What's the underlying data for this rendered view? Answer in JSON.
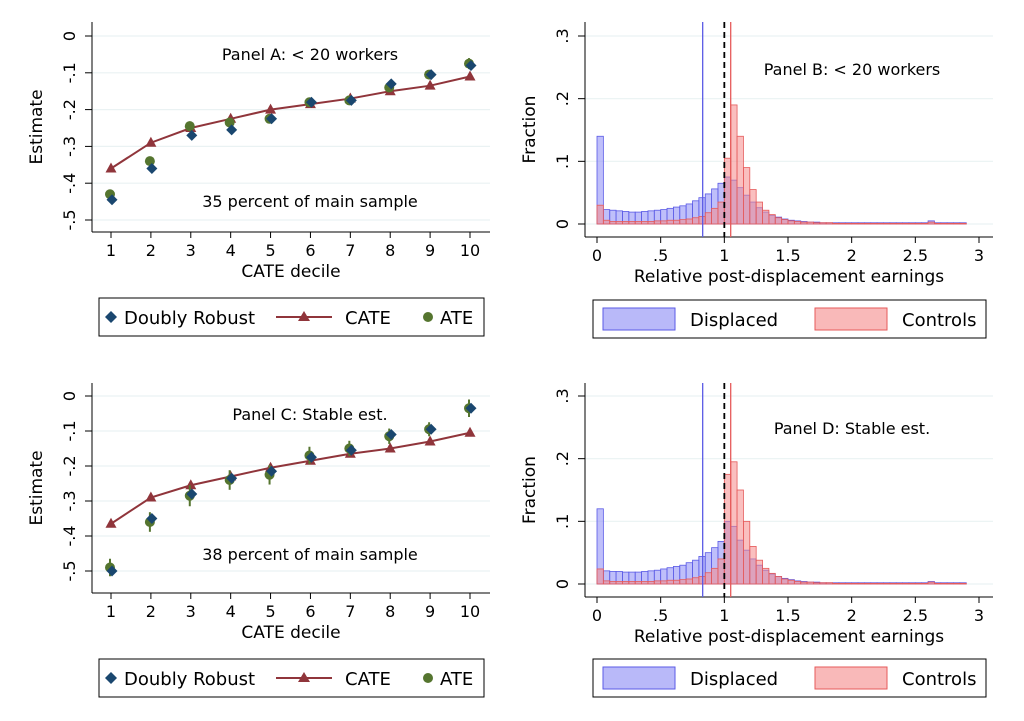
{
  "colors": {
    "doubly_robust": "#1a476f",
    "cate": "#90353b",
    "ate": "#55752f",
    "grid": "#eaf2f3",
    "displaced_fill": "#8b8bf5",
    "displaced_edge": "#5a5ae6",
    "controls_fill": "#f58b8b",
    "controls_edge": "#e65a5a",
    "overlap_fill": "#a03a8c"
  },
  "legend_left": {
    "doubly_robust": "Doubly Robust",
    "cate": "CATE",
    "ate": "ATE"
  },
  "legend_right": {
    "displaced": "Displaced",
    "controls": "Controls"
  },
  "panel_a": {
    "title": "Panel A: < 20 workers",
    "note": "35 percent of main sample"
  },
  "panel_b": {
    "title": "Panel B: < 20 workers"
  },
  "panel_c": {
    "title": "Panel C: Stable est.",
    "note": "38 percent of main sample"
  },
  "panel_d": {
    "title": "Panel D: Stable est."
  },
  "chart_data": [
    {
      "type": "scatter",
      "panel": "A",
      "title": "Panel A: < 20 workers",
      "annotation": "35 percent of main sample",
      "xlabel": "CATE decile",
      "ylabel": "Estimate",
      "x": [
        1,
        2,
        3,
        4,
        5,
        6,
        7,
        8,
        9,
        10
      ],
      "xticks": [
        "1",
        "2",
        "3",
        "4",
        "5",
        "6",
        "7",
        "8",
        "9",
        "10"
      ],
      "yticks": [
        "0",
        "-.1",
        "-.2",
        "-.3",
        "-.4",
        "-.5"
      ],
      "ylim": [
        -0.5,
        0
      ],
      "grid": true,
      "legend_position": "bottom",
      "series": [
        {
          "name": "Doubly Robust",
          "values": [
            -0.445,
            -0.36,
            -0.27,
            -0.255,
            -0.225,
            -0.18,
            -0.175,
            -0.13,
            -0.105,
            -0.08
          ]
        },
        {
          "name": "CATE",
          "values": [
            -0.36,
            -0.29,
            -0.25,
            -0.225,
            -0.2,
            -0.185,
            -0.17,
            -0.15,
            -0.135,
            -0.11
          ]
        },
        {
          "name": "ATE",
          "values": [
            -0.43,
            -0.34,
            -0.245,
            -0.235,
            -0.225,
            -0.18,
            -0.175,
            -0.14,
            -0.105,
            -0.075
          ],
          "ci_halfwidth": [
            0.01,
            0.012,
            0.013,
            0.012,
            0.012,
            0.01,
            0.01,
            0.01,
            0.012,
            0.015
          ]
        }
      ]
    },
    {
      "type": "bar",
      "panel": "B",
      "title": "Panel B: < 20 workers",
      "xlabel": "Relative post-displacement earnings",
      "ylabel": "Fraction",
      "xticks": [
        "0",
        ".5",
        "1",
        "1.5",
        "2",
        "2.5",
        "3"
      ],
      "yticks": [
        "0",
        ".1",
        ".2",
        ".3"
      ],
      "xlim": [
        0,
        3
      ],
      "ylim": [
        0,
        0.3
      ],
      "bin_width": 0.05,
      "bin_start": 0,
      "vertical_lines": [
        {
          "x": 0.83,
          "style": "solid",
          "color": "displaced"
        },
        {
          "x": 1.0,
          "style": "dashed",
          "color": "black"
        },
        {
          "x": 1.05,
          "style": "solid",
          "color": "controls"
        }
      ],
      "series": [
        {
          "name": "Displaced",
          "values": [
            0.14,
            0.023,
            0.022,
            0.021,
            0.02,
            0.019,
            0.019,
            0.02,
            0.021,
            0.022,
            0.023,
            0.025,
            0.027,
            0.029,
            0.032,
            0.037,
            0.042,
            0.048,
            0.056,
            0.065,
            0.075,
            0.07,
            0.058,
            0.046,
            0.035,
            0.026,
            0.019,
            0.014,
            0.011,
            0.008,
            0.006,
            0.005,
            0.004,
            0.003,
            0.003,
            0.002,
            0.002,
            0.002,
            0.002,
            0.002,
            0.002,
            0.002,
            0.002,
            0.002,
            0.002,
            0.002,
            0.002,
            0.002,
            0.002,
            0.002,
            0.002,
            0.002,
            0.005,
            0.002,
            0.002,
            0.002,
            0.002,
            0.002
          ]
        },
        {
          "name": "Controls",
          "values": [
            0.03,
            0.006,
            0.004,
            0.004,
            0.004,
            0.004,
            0.004,
            0.004,
            0.004,
            0.005,
            0.005,
            0.006,
            0.006,
            0.007,
            0.008,
            0.01,
            0.012,
            0.018,
            0.025,
            0.035,
            0.105,
            0.19,
            0.14,
            0.09,
            0.055,
            0.035,
            0.022,
            0.015,
            0.01,
            0.007,
            0.005,
            0.004,
            0.003,
            0.003,
            0.002,
            0.002,
            0.002,
            0.001,
            0.001,
            0.001,
            0.001,
            0.001,
            0.001,
            0.001,
            0.001,
            0.001,
            0.001,
            0.001,
            0.001,
            0.001,
            0.001,
            0.001,
            0.003,
            0.001,
            0.001,
            0.001,
            0.001,
            0.001
          ]
        }
      ]
    },
    {
      "type": "scatter",
      "panel": "C",
      "title": "Panel C: Stable est.",
      "annotation": "38 percent of main sample",
      "xlabel": "CATE decile",
      "ylabel": "Estimate",
      "x": [
        1,
        2,
        3,
        4,
        5,
        6,
        7,
        8,
        9,
        10
      ],
      "xticks": [
        "1",
        "2",
        "3",
        "4",
        "5",
        "6",
        "7",
        "8",
        "9",
        "10"
      ],
      "yticks": [
        "0",
        "-.1",
        "-.2",
        "-.3",
        "-.4",
        "-.5"
      ],
      "ylim": [
        -0.5,
        0
      ],
      "grid": true,
      "legend_position": "bottom",
      "series": [
        {
          "name": "Doubly Robust",
          "values": [
            -0.5,
            -0.35,
            -0.28,
            -0.235,
            -0.215,
            -0.175,
            -0.155,
            -0.11,
            -0.095,
            -0.035
          ]
        },
        {
          "name": "CATE",
          "values": [
            -0.365,
            -0.29,
            -0.255,
            -0.23,
            -0.205,
            -0.185,
            -0.165,
            -0.15,
            -0.13,
            -0.105
          ]
        },
        {
          "name": "ATE",
          "values": [
            -0.49,
            -0.36,
            -0.285,
            -0.24,
            -0.225,
            -0.17,
            -0.15,
            -0.115,
            -0.095,
            -0.035
          ],
          "ci_halfwidth": [
            0.025,
            0.028,
            0.03,
            0.028,
            0.028,
            0.025,
            0.022,
            0.022,
            0.02,
            0.025
          ]
        }
      ]
    },
    {
      "type": "bar",
      "panel": "D",
      "title": "Panel D: Stable est.",
      "xlabel": "Relative post-displacement earnings",
      "ylabel": "Fraction",
      "xticks": [
        "0",
        ".5",
        "1",
        "1.5",
        "2",
        "2.5",
        "3"
      ],
      "yticks": [
        "0",
        ".1",
        ".2",
        ".3"
      ],
      "xlim": [
        0,
        3
      ],
      "ylim": [
        0,
        0.3
      ],
      "bin_width": 0.05,
      "bin_start": 0,
      "vertical_lines": [
        {
          "x": 0.83,
          "style": "solid",
          "color": "displaced"
        },
        {
          "x": 1.0,
          "style": "dashed",
          "color": "black"
        },
        {
          "x": 1.05,
          "style": "solid",
          "color": "controls"
        }
      ],
      "series": [
        {
          "name": "Displaced",
          "values": [
            0.12,
            0.021,
            0.02,
            0.02,
            0.019,
            0.019,
            0.019,
            0.02,
            0.021,
            0.022,
            0.024,
            0.026,
            0.028,
            0.03,
            0.034,
            0.038,
            0.044,
            0.05,
            0.058,
            0.068,
            0.1,
            0.092,
            0.07,
            0.054,
            0.04,
            0.03,
            0.022,
            0.016,
            0.012,
            0.009,
            0.007,
            0.005,
            0.004,
            0.003,
            0.003,
            0.002,
            0.002,
            0.002,
            0.002,
            0.002,
            0.002,
            0.002,
            0.002,
            0.002,
            0.002,
            0.002,
            0.002,
            0.002,
            0.002,
            0.002,
            0.002,
            0.002,
            0.004,
            0.002,
            0.002,
            0.002,
            0.002,
            0.002
          ]
        },
        {
          "name": "Controls",
          "values": [
            0.024,
            0.005,
            0.004,
            0.004,
            0.004,
            0.004,
            0.004,
            0.004,
            0.004,
            0.005,
            0.005,
            0.006,
            0.006,
            0.007,
            0.008,
            0.01,
            0.012,
            0.018,
            0.025,
            0.04,
            0.175,
            0.195,
            0.15,
            0.1,
            0.06,
            0.038,
            0.025,
            0.017,
            0.012,
            0.008,
            0.006,
            0.004,
            0.003,
            0.003,
            0.002,
            0.002,
            0.002,
            0.001,
            0.001,
            0.001,
            0.001,
            0.001,
            0.001,
            0.001,
            0.001,
            0.001,
            0.001,
            0.001,
            0.001,
            0.001,
            0.001,
            0.001,
            0.003,
            0.001,
            0.001,
            0.001,
            0.001,
            0.001
          ]
        }
      ]
    }
  ]
}
